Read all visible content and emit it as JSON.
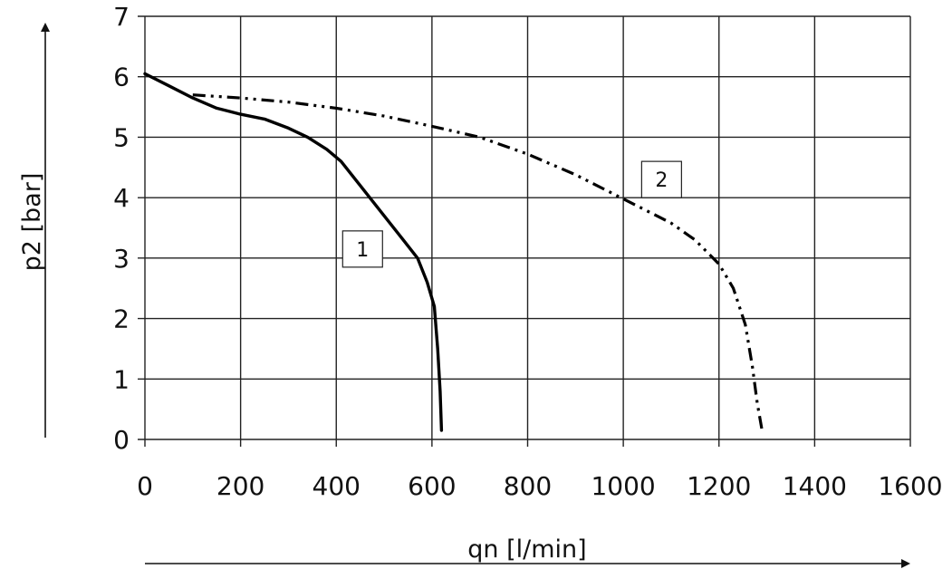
{
  "chart_data": {
    "type": "line",
    "xlabel": "qn [l/min]",
    "ylabel": "p2 [bar]",
    "xlim": [
      0,
      1600
    ],
    "ylim": [
      0,
      7
    ],
    "x_ticks": [
      "0",
      "200",
      "400",
      "600",
      "800",
      "1000",
      "1200",
      "1400",
      "1600"
    ],
    "y_ticks": [
      "0",
      "1",
      "2",
      "3",
      "4",
      "5",
      "6",
      "7"
    ],
    "grid": true,
    "series": [
      {
        "name": "1",
        "style": "solid",
        "color": "#000000",
        "points": [
          [
            0,
            6.05
          ],
          [
            50,
            5.85
          ],
          [
            100,
            5.65
          ],
          [
            150,
            5.48
          ],
          [
            200,
            5.38
          ],
          [
            250,
            5.3
          ],
          [
            300,
            5.15
          ],
          [
            340,
            5.0
          ],
          [
            380,
            4.8
          ],
          [
            410,
            4.6
          ],
          [
            450,
            4.2
          ],
          [
            500,
            3.7
          ],
          [
            540,
            3.3
          ],
          [
            570,
            3.0
          ],
          [
            590,
            2.6
          ],
          [
            605,
            2.2
          ],
          [
            612,
            1.5
          ],
          [
            617,
            0.8
          ],
          [
            620,
            0.15
          ]
        ]
      },
      {
        "name": "2",
        "style": "dash-dot",
        "color": "#000000",
        "points": [
          [
            100,
            5.7
          ],
          [
            200,
            5.65
          ],
          [
            300,
            5.58
          ],
          [
            400,
            5.48
          ],
          [
            500,
            5.35
          ],
          [
            600,
            5.18
          ],
          [
            700,
            5.0
          ],
          [
            800,
            4.72
          ],
          [
            900,
            4.38
          ],
          [
            1000,
            3.98
          ],
          [
            1100,
            3.58
          ],
          [
            1150,
            3.3
          ],
          [
            1200,
            2.9
          ],
          [
            1230,
            2.5
          ],
          [
            1255,
            1.9
          ],
          [
            1270,
            1.2
          ],
          [
            1280,
            0.6
          ],
          [
            1290,
            0.15
          ]
        ]
      }
    ],
    "annotations": [
      {
        "text": "1",
        "x": 455,
        "y": 3.15
      },
      {
        "text": "2",
        "x": 1080,
        "y": 4.3
      }
    ]
  }
}
